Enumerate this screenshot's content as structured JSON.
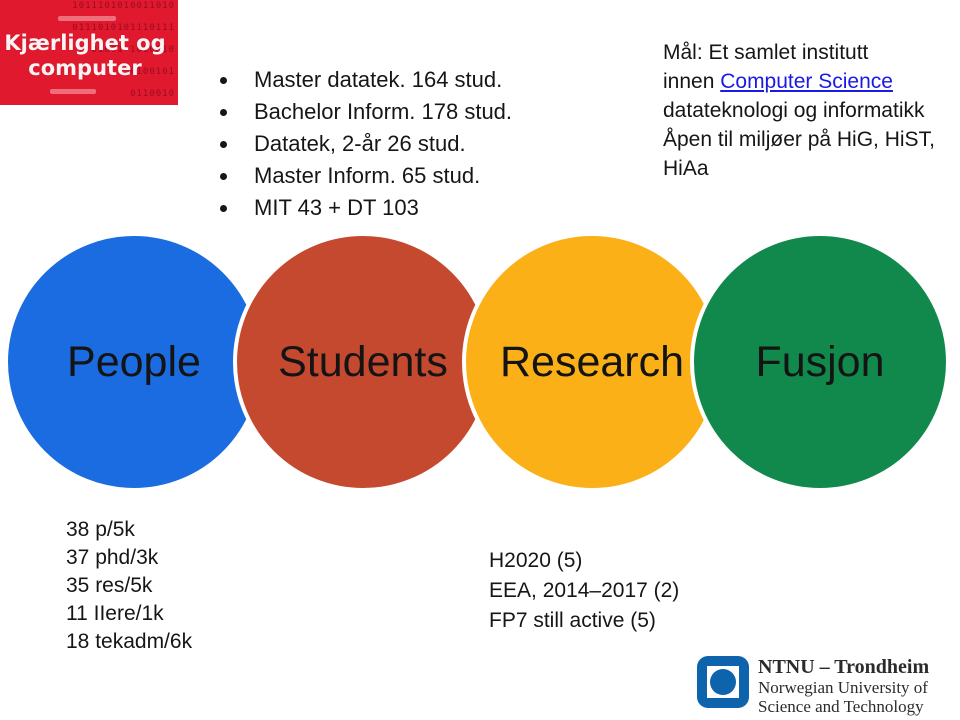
{
  "cover": {
    "bg_color": "#E0192E",
    "title_line1": "Kjærlighet og",
    "title_line2": "computer",
    "binary_rows": [
      "1011101010011010",
      "0111010101110111",
      "01001 1010010",
      "0100101",
      "0110010",
      "1100101",
      "11010011",
      "110010"
    ]
  },
  "bullets": {
    "items": [
      "Master datatek. 164 stud.",
      "Bachelor Inform. 178 stud.",
      "Datatek, 2-år 26 stud.",
      "Master Inform. 65 stud.",
      "MIT 43 + DT 103"
    ]
  },
  "goal": {
    "line1": "Mål: Et samlet institutt",
    "line2_prefix": "innen ",
    "line2_link": "Computer Science",
    "line3": "datateknologi og informatikk",
    "line4": "Åpen til miljøer på HiG, HiST,",
    "line5": "HiAa",
    "link_color": "#1A1AE6"
  },
  "circles": [
    {
      "label": "People",
      "color": "#1A6CE0"
    },
    {
      "label": "Students",
      "color": "#C5492F"
    },
    {
      "label": "Research",
      "color": "#FBB017"
    },
    {
      "label": "Fusjon",
      "color": "#12894C"
    }
  ],
  "stats_left": {
    "lines": [
      "38 p/5k",
      "37 phd/3k",
      "35 res/5k",
      "11 IIere/1k",
      "18 tekadm/6k"
    ]
  },
  "stats_mid": {
    "lines": [
      "H2020 (5)",
      "EEA, 2014–2017 (2)",
      "FP7 still active (5)"
    ]
  },
  "ntnu": {
    "logo_color": "#0D64AC",
    "title": "NTNU – Trondheim",
    "line2": "Norwegian University of",
    "line3": "Science and Technology"
  }
}
